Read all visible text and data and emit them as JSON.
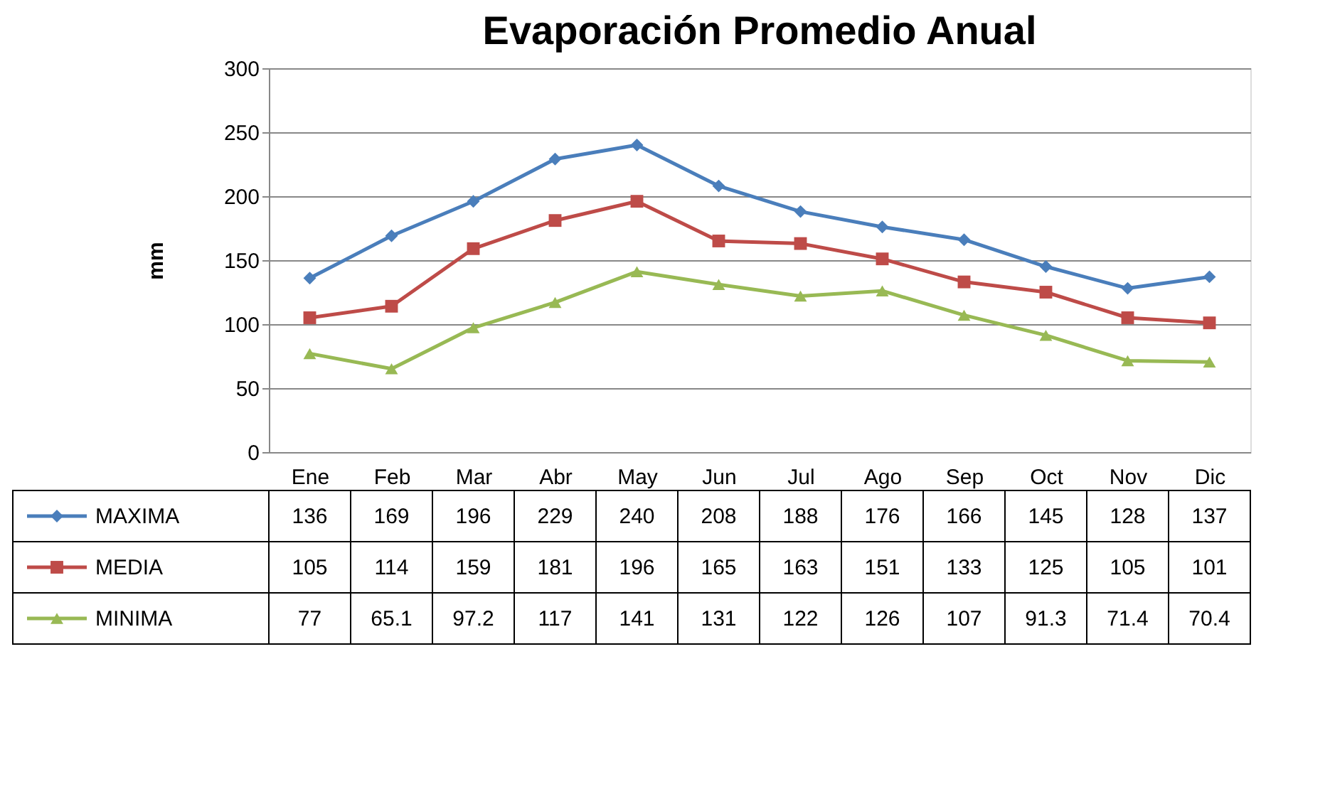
{
  "chart_data": {
    "type": "line",
    "title": "Evaporación Promedio Anual",
    "ylabel": "mm",
    "categories": [
      "Ene",
      "Feb",
      "Mar",
      "Abr",
      "May",
      "Jun",
      "Jul",
      "Ago",
      "Sep",
      "Oct",
      "Nov",
      "Dic"
    ],
    "series": [
      {
        "name": "MAXIMA",
        "color": "#4a7ebb",
        "marker": "diamond",
        "values": [
          136,
          169,
          196,
          229,
          240,
          208,
          188,
          176,
          166,
          145,
          128,
          137
        ]
      },
      {
        "name": "MEDIA",
        "color": "#be4b48",
        "marker": "square",
        "values": [
          105,
          114,
          159,
          181,
          196,
          165,
          163,
          151,
          133,
          125,
          105,
          101
        ]
      },
      {
        "name": "MINIMA",
        "color": "#98b954",
        "marker": "triangle",
        "values": [
          77,
          65.1,
          97.2,
          117,
          141,
          131,
          122,
          126,
          107,
          91.3,
          71.4,
          70.4
        ]
      }
    ],
    "ylim": [
      0,
      300
    ],
    "yticks": [
      0,
      50,
      100,
      150,
      200,
      250,
      300
    ],
    "grid": "y",
    "legend": "bottom left",
    "data_labels": true,
    "line_style": "solid"
  }
}
